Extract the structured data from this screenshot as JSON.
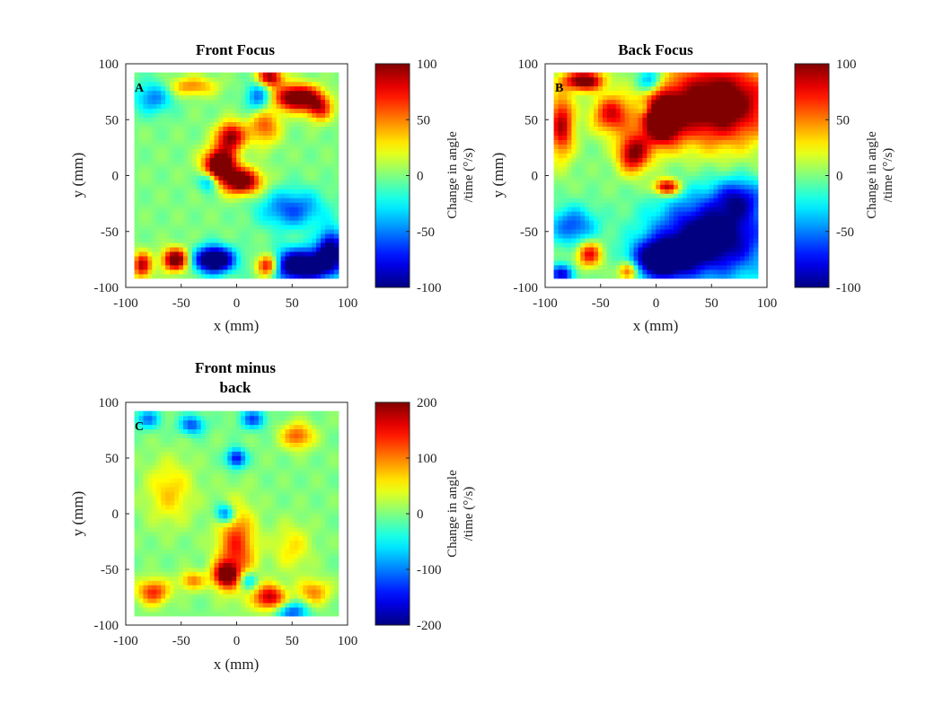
{
  "chart_data": [
    {
      "type": "heatmap",
      "panel_label": "A",
      "title": "Front Focus",
      "xlabel": "x (mm)",
      "ylabel": "y (mm)",
      "xlim": [
        -100,
        100
      ],
      "ylim": [
        -100,
        100
      ],
      "x_ticks": [
        "-100",
        "-50",
        "0",
        "50",
        "100"
      ],
      "y_ticks": [
        "100",
        "50",
        "0",
        "-50",
        "-100"
      ],
      "colorbar": {
        "label_line1": "Change in angle",
        "label_line2": "/time (°/s)",
        "range": [
          -100,
          100
        ],
        "ticks": [
          "100",
          "50",
          "0",
          "-50",
          "-100"
        ]
      },
      "data_extent": [
        -92,
        92
      ],
      "features": [
        {
          "x": -15,
          "y": 10,
          "sx": 10,
          "sy": 10,
          "a": 1.4
        },
        {
          "x": 5,
          "y": -5,
          "sx": 12,
          "sy": 8,
          "a": 1.2
        },
        {
          "x": -5,
          "y": 35,
          "sx": 9,
          "sy": 9,
          "a": 1.0
        },
        {
          "x": 55,
          "y": 70,
          "sx": 14,
          "sy": 8,
          "a": 1.3
        },
        {
          "x": 30,
          "y": 88,
          "sx": 8,
          "sy": 6,
          "a": 1.0
        },
        {
          "x": 75,
          "y": 60,
          "sx": 8,
          "sy": 8,
          "a": 0.7
        },
        {
          "x": 25,
          "y": 45,
          "sx": 10,
          "sy": 12,
          "a": 0.6
        },
        {
          "x": -55,
          "y": -75,
          "sx": 8,
          "sy": 7,
          "a": 1.2
        },
        {
          "x": -85,
          "y": -80,
          "sx": 6,
          "sy": 8,
          "a": 0.9
        },
        {
          "x": 28,
          "y": -80,
          "sx": 7,
          "sy": 7,
          "a": 1.1
        },
        {
          "x": -40,
          "y": 80,
          "sx": 15,
          "sy": 6,
          "a": 0.5
        },
        {
          "x": -20,
          "y": -75,
          "sx": 12,
          "sy": 8,
          "a": -1.5
        },
        {
          "x": 60,
          "y": -80,
          "sx": 20,
          "sy": 10,
          "a": -1.4
        },
        {
          "x": 50,
          "y": -30,
          "sx": 20,
          "sy": 12,
          "a": -0.6
        },
        {
          "x": 85,
          "y": -65,
          "sx": 8,
          "sy": 12,
          "a": -1.0
        },
        {
          "x": -75,
          "y": 70,
          "sx": 12,
          "sy": 10,
          "a": -0.5
        },
        {
          "x": 20,
          "y": 70,
          "sx": 8,
          "sy": 10,
          "a": -0.6
        },
        {
          "x": -25,
          "y": -5,
          "sx": 6,
          "sy": 6,
          "a": -0.6
        }
      ]
    },
    {
      "type": "heatmap",
      "panel_label": "B",
      "title": "Back Focus",
      "xlabel": "x (mm)",
      "ylabel": "y (mm)",
      "xlim": [
        -100,
        100
      ],
      "ylim": [
        -100,
        100
      ],
      "x_ticks": [
        "-100",
        "-50",
        "0",
        "50",
        "100"
      ],
      "y_ticks": [
        "100",
        "50",
        "0",
        "-50",
        "-100"
      ],
      "colorbar": {
        "label_line1": "Change in angle",
        "label_line2": "/time (°/s)",
        "range": [
          -100,
          100
        ],
        "ticks": [
          "100",
          "50",
          "0",
          "-50",
          "-100"
        ]
      },
      "data_extent": [
        -92,
        92
      ],
      "features": [
        {
          "x": 55,
          "y": 65,
          "sx": 35,
          "sy": 25,
          "a": 1.3
        },
        {
          "x": 5,
          "y": 50,
          "sx": 12,
          "sy": 15,
          "a": 1.4
        },
        {
          "x": -20,
          "y": 20,
          "sx": 10,
          "sy": 12,
          "a": 1.0
        },
        {
          "x": -65,
          "y": 85,
          "sx": 12,
          "sy": 6,
          "a": 1.2
        },
        {
          "x": -85,
          "y": 45,
          "sx": 8,
          "sy": 20,
          "a": 0.9
        },
        {
          "x": 10,
          "y": -10,
          "sx": 8,
          "sy": 5,
          "a": 1.0
        },
        {
          "x": -40,
          "y": 55,
          "sx": 12,
          "sy": 12,
          "a": 0.8
        },
        {
          "x": -60,
          "y": -70,
          "sx": 8,
          "sy": 8,
          "a": 0.8
        },
        {
          "x": -25,
          "y": -85,
          "sx": 6,
          "sy": 6,
          "a": 0.8
        },
        {
          "x": 50,
          "y": -55,
          "sx": 35,
          "sy": 25,
          "a": -1.2
        },
        {
          "x": 5,
          "y": -75,
          "sx": 18,
          "sy": 12,
          "a": -1.2
        },
        {
          "x": 75,
          "y": -20,
          "sx": 15,
          "sy": 12,
          "a": -0.6
        },
        {
          "x": -75,
          "y": -45,
          "sx": 15,
          "sy": 12,
          "a": -0.6
        },
        {
          "x": -85,
          "y": -88,
          "sx": 8,
          "sy": 6,
          "a": -0.8
        },
        {
          "x": -5,
          "y": 85,
          "sx": 8,
          "sy": 8,
          "a": -0.6
        },
        {
          "x": -10,
          "y": 60,
          "sx": 5,
          "sy": 5,
          "a": -0.4
        }
      ]
    },
    {
      "type": "heatmap",
      "panel_label": "C",
      "title_line1": "Front minus",
      "title_line2": "back",
      "xlabel": "x (mm)",
      "ylabel": "y (mm)",
      "xlim": [
        -100,
        100
      ],
      "ylim": [
        -100,
        100
      ],
      "x_ticks": [
        "-100",
        "-50",
        "0",
        "50",
        "100"
      ],
      "y_ticks": [
        "100",
        "50",
        "0",
        "-50",
        "-100"
      ],
      "colorbar": {
        "label_line1": "Change in angle",
        "label_line2": "/time (°/s)",
        "range": [
          -200,
          200
        ],
        "ticks": [
          "200",
          "100",
          "0",
          "-100",
          "-200"
        ]
      },
      "data_extent": [
        -92,
        92
      ],
      "features": [
        {
          "x": 0,
          "y": -30,
          "sx": 12,
          "sy": 25,
          "a": 0.7
        },
        {
          "x": -10,
          "y": -55,
          "sx": 8,
          "sy": 8,
          "a": 1.0
        },
        {
          "x": 30,
          "y": -75,
          "sx": 10,
          "sy": 8,
          "a": 0.9
        },
        {
          "x": -75,
          "y": -70,
          "sx": 10,
          "sy": 8,
          "a": 0.7
        },
        {
          "x": -40,
          "y": -60,
          "sx": 8,
          "sy": 6,
          "a": 0.5
        },
        {
          "x": 55,
          "y": 70,
          "sx": 10,
          "sy": 8,
          "a": 0.6
        },
        {
          "x": 70,
          "y": -70,
          "sx": 10,
          "sy": 8,
          "a": 0.5
        },
        {
          "x": -60,
          "y": 20,
          "sx": 15,
          "sy": 20,
          "a": 0.35
        },
        {
          "x": 50,
          "y": -30,
          "sx": 12,
          "sy": 15,
          "a": 0.3
        },
        {
          "x": 0,
          "y": 50,
          "sx": 6,
          "sy": 6,
          "a": -0.8
        },
        {
          "x": -10,
          "y": 0,
          "sx": 6,
          "sy": 6,
          "a": -0.7
        },
        {
          "x": -40,
          "y": 80,
          "sx": 8,
          "sy": 6,
          "a": -0.6
        },
        {
          "x": 15,
          "y": 85,
          "sx": 8,
          "sy": 6,
          "a": -0.6
        },
        {
          "x": 50,
          "y": -88,
          "sx": 10,
          "sy": 6,
          "a": -0.6
        },
        {
          "x": -80,
          "y": 85,
          "sx": 8,
          "sy": 6,
          "a": -0.5
        },
        {
          "x": 10,
          "y": -60,
          "sx": 6,
          "sy": 6,
          "a": -0.5
        }
      ]
    }
  ]
}
